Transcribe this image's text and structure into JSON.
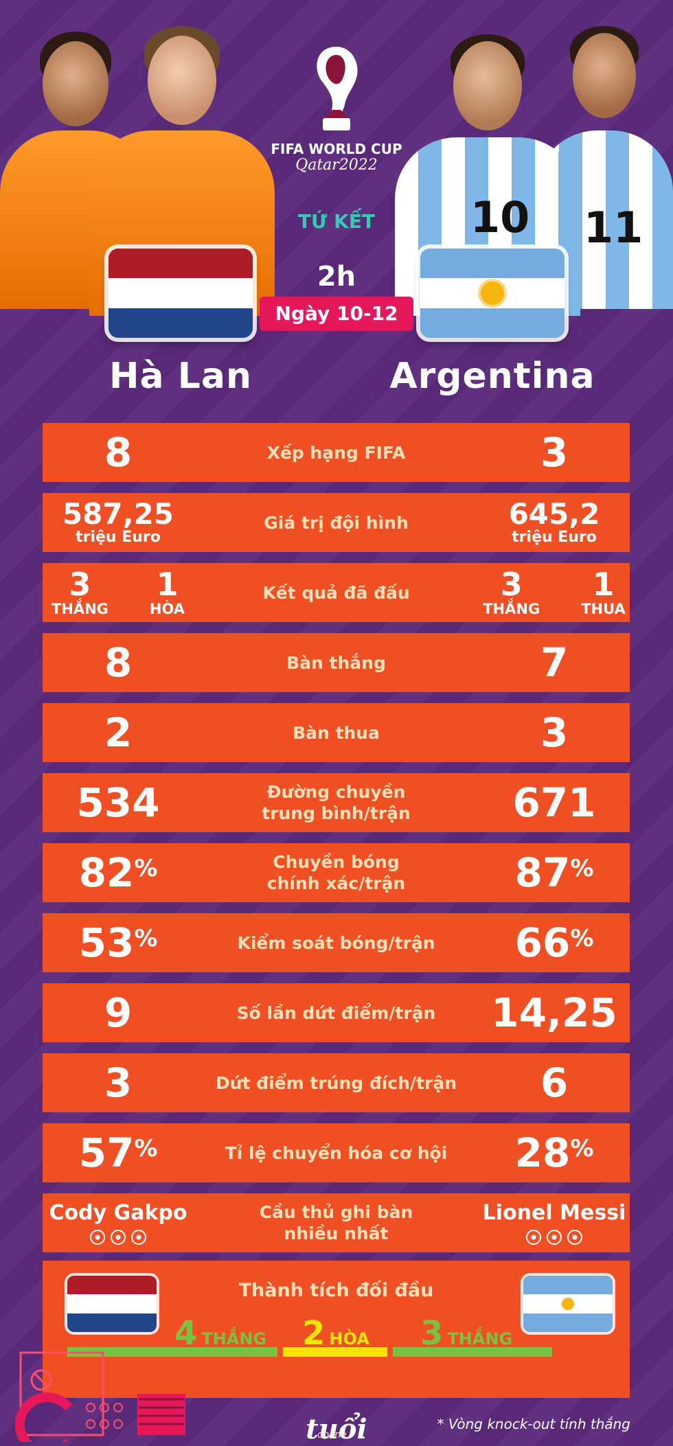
{
  "header": {
    "event_line1": "FIFA WORLD CUP",
    "event_line2": "Qatar2022",
    "round": "TỨ KẾT",
    "time": "2h",
    "date": "Ngày 10-12"
  },
  "teams": {
    "left": {
      "name": "Hà Lan",
      "jersey_number": "",
      "flag_colors": [
        "#ae1c28",
        "#ffffff",
        "#21468b"
      ]
    },
    "right": {
      "name": "Argentina",
      "jersey_numbers": [
        "10",
        "11"
      ],
      "flag_colors": [
        "#74acdf",
        "#ffffff",
        "#74acdf"
      ]
    }
  },
  "stats": [
    {
      "label": "Xếp hạng FIFA",
      "left": "8",
      "right": "3",
      "kind": "big"
    },
    {
      "label": "Giá trị đội hình",
      "left": "587,25",
      "left_unit": "triệu Euro",
      "right": "645,2",
      "right_unit": "triệu Euro",
      "kind": "money"
    },
    {
      "label": "Kết quả đã đấu",
      "kind": "pair",
      "left_pair": [
        {
          "n": "3",
          "t": "THẮNG"
        },
        {
          "n": "1",
          "t": "HÒA"
        }
      ],
      "right_pair": [
        {
          "n": "3",
          "t": "THẮNG"
        },
        {
          "n": "1",
          "t": "THUA"
        }
      ]
    },
    {
      "label": "Bàn thắng",
      "left": "8",
      "right": "7",
      "kind": "big"
    },
    {
      "label": "Bàn thua",
      "left": "2",
      "right": "3",
      "kind": "big"
    },
    {
      "label": "Đường chuyền\ntrung bình/trận",
      "left": "534",
      "right": "671",
      "kind": "big"
    },
    {
      "label": "Chuyền bóng\nchính xác/trận",
      "left": "82",
      "right": "87",
      "pct": "%",
      "kind": "pct"
    },
    {
      "label": "Kiểm soát bóng/trận",
      "left": "53",
      "right": "66",
      "pct": "%",
      "kind": "pct"
    },
    {
      "label": "Số lần dứt điểm/trận",
      "left": "9",
      "right": "14,25",
      "kind": "big"
    },
    {
      "label": "Dứt điểm trúng đích/trận",
      "left": "3",
      "right": "6",
      "kind": "big"
    },
    {
      "label": "Tỉ lệ chuyển hóa cơ hội",
      "left": "57",
      "right": "28",
      "pct": "%",
      "kind": "pct"
    },
    {
      "label": "Cầu thủ ghi bàn\nnhiều nhất",
      "left": "Cody Gakpo",
      "right": "Lionel Messi",
      "left_goals": 3,
      "right_goals": 3,
      "kind": "scorer"
    }
  ],
  "head_to_head": {
    "title": "Thành tích đối đầu",
    "left": {
      "num": "4",
      "word": "THẮNG",
      "color": "#7cc242"
    },
    "draw": {
      "num": "2",
      "word": "HÒA",
      "color": "#f5e500"
    },
    "right": {
      "num": "3",
      "word": "THẮNG",
      "color": "#7cc242"
    }
  },
  "footer": {
    "brand": "tuổi trẻ",
    "brand_sub": "online",
    "note": "* Vòng knock-out tính thắng"
  }
}
